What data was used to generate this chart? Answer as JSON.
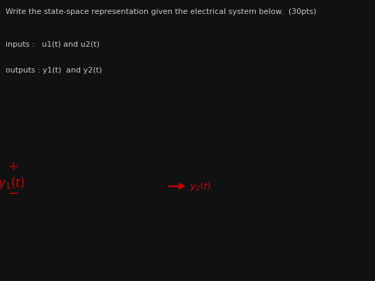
{
  "bg_color": "#111111",
  "white_bg": "#ffffff",
  "header_text1": "Write the state-space representation given the electrical system below.  (30pts)",
  "header_text2": "inputs :   u1(t) and u2(t)",
  "header_text3": "outputs : y1(t)  and y2(t)",
  "text_color_header": "#c8c8c8",
  "text_color_black": "#111111",
  "text_color_red": "#cc0000",
  "fig_width": 5.38,
  "fig_height": 4.03,
  "dpi": 100
}
